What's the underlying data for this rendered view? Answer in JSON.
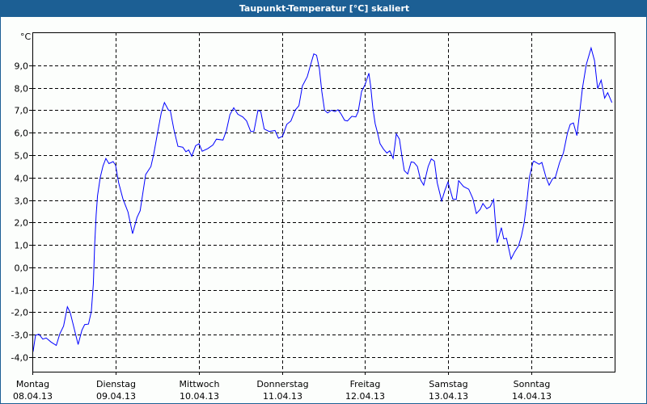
{
  "window": {
    "title": "Taupunkt-Temperatur [°C] skaliert"
  },
  "chart_data": {
    "type": "line",
    "title": "Taupunkt-Temperatur [°C] skaliert",
    "ylabel": "°C",
    "xlabel": "",
    "xunit": "hours since 08.04.13 00:00",
    "xlim": [
      0,
      168
    ],
    "ylim": [
      -4.65,
      10.47
    ],
    "grid": true,
    "line_color": "#0000ff",
    "yticks": [
      -4,
      -3,
      -2,
      -1,
      0,
      1,
      2,
      3,
      4,
      5,
      6,
      7,
      8,
      9
    ],
    "ytick_labels": [
      "-4,0",
      "-3,0",
      "-2,0",
      "-1,0",
      "0,0",
      "1,0",
      "2,0",
      "3,0",
      "4,0",
      "5,0",
      "6,0",
      "7,0",
      "8,0",
      "9,0"
    ],
    "xticks": [
      {
        "day": "Montag",
        "date": "08.04.13",
        "hour": 0
      },
      {
        "day": "Dienstag",
        "date": "09.04.13",
        "hour": 24
      },
      {
        "day": "Mittwoch",
        "date": "10.04.13",
        "hour": 48
      },
      {
        "day": "Donnerstag",
        "date": "11.04.13",
        "hour": 72
      },
      {
        "day": "Freitag",
        "date": "12.04.13",
        "hour": 96
      },
      {
        "day": "Samstag",
        "date": "13.04.13",
        "hour": 120
      },
      {
        "day": "Sonntag",
        "date": "14.04.13",
        "hour": 144
      }
    ],
    "series": [
      {
        "name": "Taupunkt",
        "x": [
          0.2,
          0.9,
          1.9,
          3.0,
          4.0,
          5.4,
          6.9,
          7.9,
          9.0,
          10.1,
          10.9,
          13.2,
          14.3,
          15.1,
          16.2,
          17.0,
          17.6,
          18.0,
          18.4,
          18.8,
          19.6,
          20.4,
          21.2,
          22.1,
          23.3,
          24.0,
          24.9,
          26.1,
          27.6,
          28.9,
          30.2,
          31.1,
          32.7,
          34.2,
          35.0,
          36.2,
          37.2,
          38.1,
          39.3,
          39.8,
          40.8,
          42.0,
          43.4,
          44.3,
          45.1,
          46.0,
          47.1,
          48.1,
          49.0,
          50.6,
          52.1,
          53.1,
          55.0,
          56.0,
          57.0,
          58.1,
          59.3,
          60.7,
          61.8,
          63.0,
          63.9,
          65.1,
          65.9,
          66.9,
          68.4,
          70.0,
          71.0,
          72.2,
          73.4,
          74.6,
          75.8,
          76.9,
          77.9,
          79.3,
          80.3,
          81.2,
          82.0,
          82.8,
          83.5,
          84.3,
          85.2,
          86.3,
          87.3,
          88.2,
          89.1,
          90.1,
          90.9,
          92.2,
          93.3,
          94.0,
          95.0,
          96.0,
          97.1,
          97.6,
          98.2,
          98.9,
          99.7,
          100.3,
          101.3,
          102.3,
          103.1,
          104.1,
          104.6,
          105.0,
          105.9,
          106.6,
          107.3,
          108.3,
          109.3,
          110.1,
          111.1,
          112.0,
          112.9,
          114.2,
          115.1,
          116.0,
          116.8,
          118.1,
          119.0,
          119.9,
          121.3,
          122.3,
          123.0,
          124.4,
          125.9,
          127.1,
          128.1,
          129.2,
          130.0,
          131.1,
          132.1,
          133.1,
          133.5,
          134.1,
          135.3,
          136.0,
          136.8,
          138.1,
          139.1,
          140.3,
          141.1,
          141.9,
          142.6,
          143.4,
          144.4,
          144.7,
          146.2,
          147.0,
          148.2,
          149.1,
          150.1,
          150.9,
          152.1,
          153.2,
          154.4,
          155.2,
          156.1,
          157.1,
          157.9,
          158.7,
          159.8,
          161.2,
          162.2,
          163.1,
          164.1,
          165.1,
          166.0,
          167.2
        ],
        "y": [
          -3.76,
          -3.03,
          -2.98,
          -3.2,
          -3.15,
          -3.33,
          -3.48,
          -2.97,
          -2.62,
          -1.76,
          -2.0,
          -3.44,
          -2.8,
          -2.55,
          -2.53,
          -1.97,
          -0.76,
          1.03,
          2.34,
          3.19,
          4.01,
          4.52,
          4.85,
          4.62,
          4.71,
          4.55,
          3.77,
          3.06,
          2.46,
          1.5,
          2.22,
          2.52,
          4.13,
          4.49,
          5.03,
          6.05,
          6.88,
          7.34,
          7.0,
          6.98,
          6.16,
          5.39,
          5.35,
          5.15,
          5.23,
          4.95,
          5.42,
          5.51,
          5.17,
          5.29,
          5.45,
          5.71,
          5.67,
          6.1,
          6.8,
          7.11,
          6.82,
          6.7,
          6.52,
          6.05,
          6.05,
          7.0,
          6.94,
          6.16,
          6.05,
          6.1,
          5.75,
          5.84,
          6.37,
          6.52,
          7.0,
          7.2,
          8.08,
          8.49,
          9.03,
          9.51,
          9.45,
          8.85,
          7.84,
          7.0,
          6.88,
          7.0,
          6.94,
          7.02,
          6.82,
          6.55,
          6.52,
          6.73,
          6.7,
          6.94,
          7.84,
          8.14,
          8.65,
          8.08,
          7.12,
          6.4,
          5.92,
          5.51,
          5.27,
          5.09,
          5.19,
          4.85,
          5.45,
          5.95,
          5.71,
          4.97,
          4.31,
          4.16,
          4.7,
          4.67,
          4.49,
          3.9,
          3.66,
          4.49,
          4.83,
          4.73,
          3.77,
          2.96,
          3.42,
          3.8,
          3.04,
          3.02,
          3.86,
          3.6,
          3.48,
          3.06,
          2.4,
          2.58,
          2.84,
          2.61,
          2.7,
          3.02,
          2.22,
          1.09,
          1.77,
          1.27,
          1.29,
          0.37,
          0.67,
          0.97,
          1.39,
          1.98,
          2.82,
          4.01,
          4.67,
          4.73,
          4.59,
          4.67,
          4.01,
          3.66,
          3.95,
          4.01,
          4.67,
          5.09,
          5.99,
          6.37,
          6.43,
          5.87,
          6.88,
          7.96,
          9.03,
          9.77,
          9.21,
          7.96,
          8.34,
          7.54,
          7.78,
          7.34
        ]
      }
    ]
  }
}
